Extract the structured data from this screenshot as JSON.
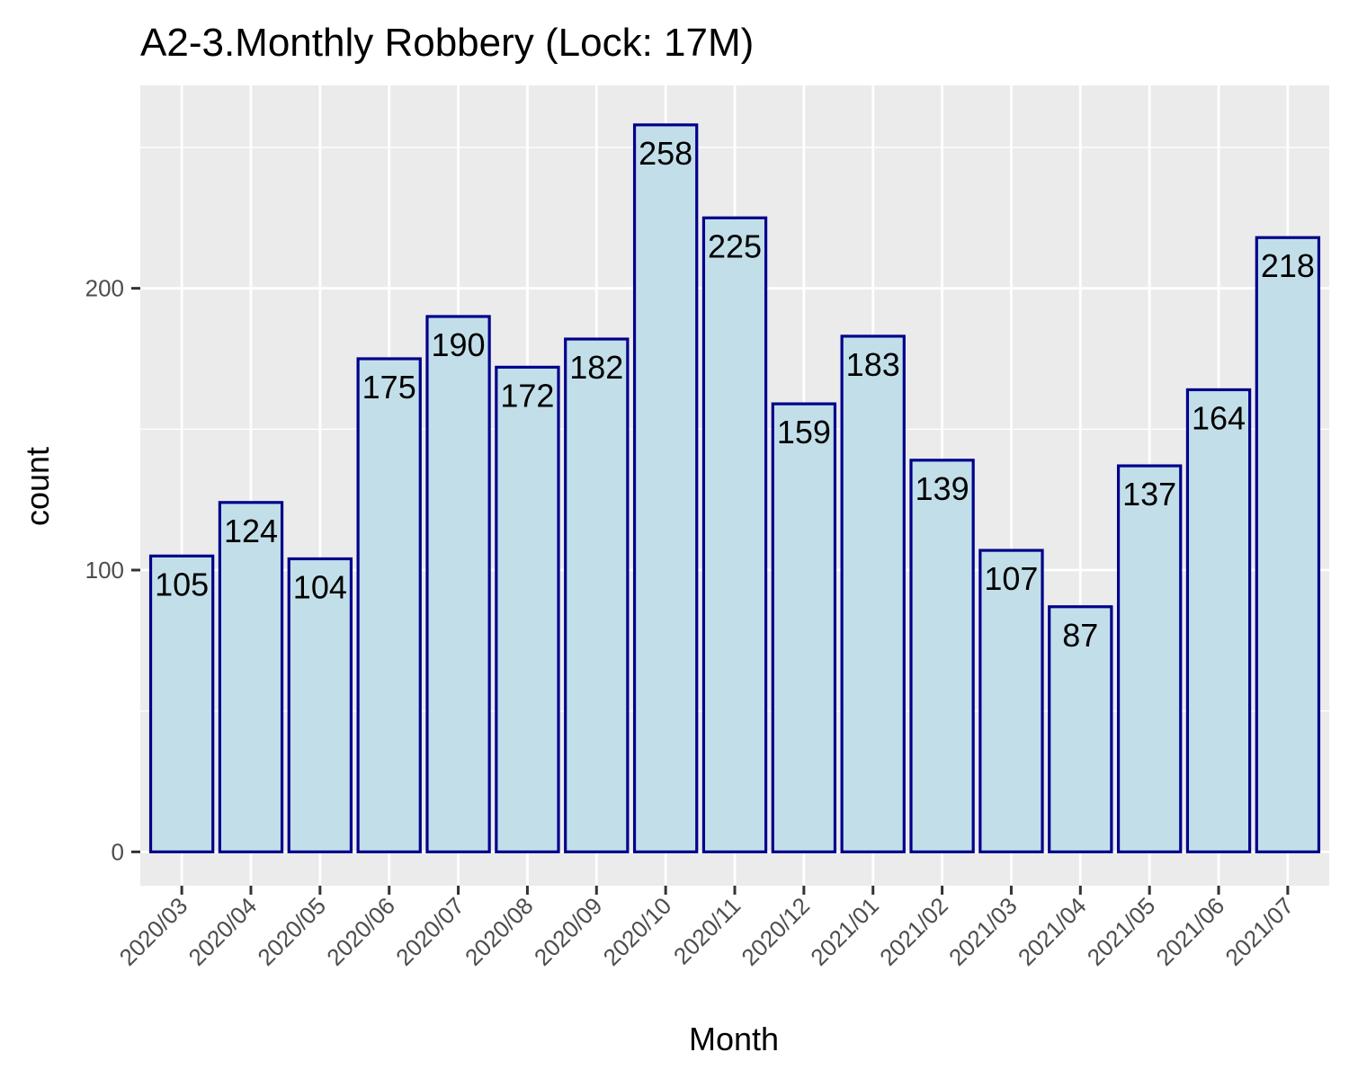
{
  "chart_data": {
    "type": "bar",
    "title": "A2-3.Monthly Robbery (Lock: 17M)",
    "xlabel": "Month",
    "ylabel": "count",
    "categories": [
      "2020/03",
      "2020/04",
      "2020/05",
      "2020/06",
      "2020/07",
      "2020/08",
      "2020/09",
      "2020/10",
      "2020/11",
      "2020/12",
      "2021/01",
      "2021/02",
      "2021/03",
      "2021/04",
      "2021/05",
      "2021/06",
      "2021/07"
    ],
    "values": [
      105,
      124,
      104,
      175,
      190,
      172,
      182,
      258,
      225,
      159,
      183,
      139,
      107,
      87,
      137,
      164,
      218
    ],
    "ylim": [
      -12,
      272
    ],
    "yticks": [
      0,
      100,
      200
    ],
    "grid": true,
    "legend": "none",
    "colors": {
      "panel": "#ebebeb",
      "grid": "#ffffff",
      "bar_fill": "#c2dfe9",
      "bar_stroke": "#00008b",
      "tick": "#333333",
      "tick_text": "#4d4d4d"
    }
  }
}
